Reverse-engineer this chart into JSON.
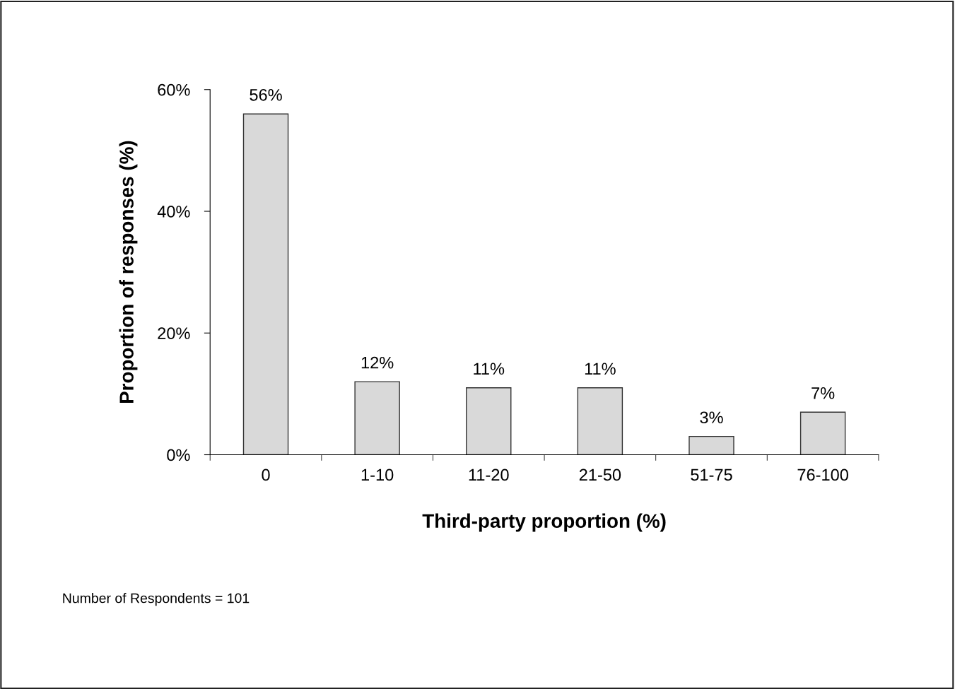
{
  "chart_data": {
    "type": "bar",
    "xlabel": "Third-party proportion (%)",
    "ylabel": "Proportion of responses (%)",
    "categories": [
      "0",
      "1-10",
      "11-20",
      "21-50",
      "51-75",
      "76-100"
    ],
    "values": [
      56,
      12,
      11,
      11,
      3,
      7
    ],
    "value_labels": [
      "56%",
      "12%",
      "11%",
      "11%",
      "3%",
      "7%"
    ],
    "color": "#d9d9d9",
    "ylim": [
      0,
      60
    ],
    "yticks": [
      {
        "value": 0,
        "label": "0%"
      },
      {
        "value": 20,
        "label": "20%"
      },
      {
        "value": 40,
        "label": "40%"
      },
      {
        "value": 60,
        "label": "60%"
      }
    ],
    "grid": false,
    "annotations": [
      "Number of Respondents = 101"
    ]
  }
}
